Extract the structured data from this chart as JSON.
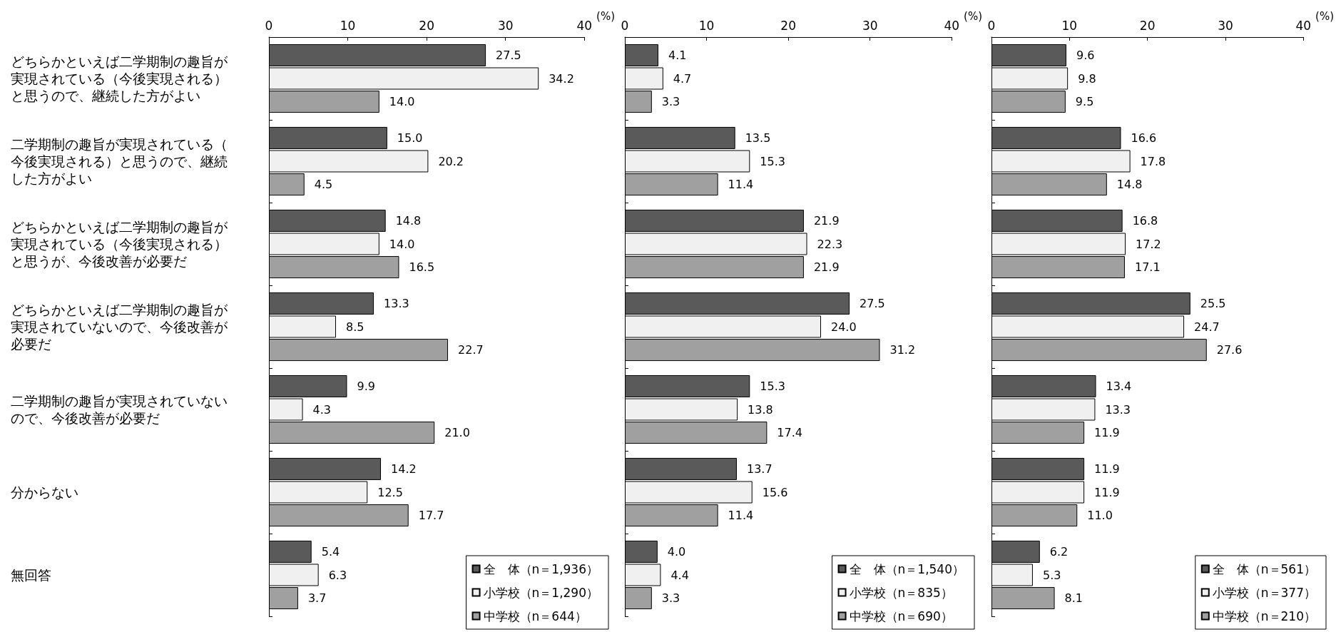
{
  "chart_data": [
    {
      "type": "bar",
      "orientation": "horizontal",
      "xlabel": "(%)",
      "categories": [
        "どちらかといえば二学期制の趣旨が実現されている（今後実現される）と思うので、継続した方がよい",
        "二学期制の趣旨が実現されている（今後実現される）と思うので、継続した方がよい",
        "どちらかといえば二学期制の趣旨が実現されている（今後実現される）と思うが、今後改善が必要だ",
        "どちらかといえば二学期制の趣旨が実現されていないので、今後改善が必要だ",
        "二学期制の趣旨が実現されていないので、今後改善が必要だ",
        "分からない",
        "無回答"
      ],
      "series": [
        {
          "name": "全　体（n＝1,936）",
          "color": "#5a5a5a",
          "values": [
            27.5,
            15.0,
            14.8,
            13.3,
            9.9,
            14.2,
            5.4
          ],
          "value_labels": [
            "27.5",
            "15.0",
            "14.8",
            "13.3",
            "9.9",
            "14.2",
            "5.4"
          ]
        },
        {
          "name": "小学校（n＝1,290）",
          "color": "#f0f0f0",
          "values": [
            34.2,
            20.2,
            14.0,
            8.5,
            4.3,
            12.5,
            6.3
          ],
          "value_labels": [
            "34.2",
            "20.2",
            "14.0",
            "8.5",
            "4.3",
            "12.5",
            "6.3"
          ]
        },
        {
          "name": "中学校（n＝644）",
          "color": "#a0a0a0",
          "values": [
            14.0,
            4.5,
            16.5,
            22.7,
            21.0,
            17.7,
            3.7
          ],
          "value_labels": [
            "14.0",
            "4.5",
            "16.5",
            "22.7",
            "21.0",
            "17.7",
            "3.7"
          ]
        }
      ],
      "xlim": [
        0,
        40
      ],
      "xticks": [
        0,
        10,
        20,
        30,
        40
      ],
      "grid": false,
      "legend": "bottom right"
    },
    {
      "type": "bar",
      "orientation": "horizontal",
      "xlabel": "(%)",
      "categories": [
        "どちらかといえば二学期制の趣旨が実現されている（今後実現される）と思うので、継続した方がよい",
        "二学期制の趣旨が実現されている（今後実現される）と思うので、継続した方がよい",
        "どちらかといえば二学期制の趣旨が実現されている（今後実現される）と思うが、今後改善が必要だ",
        "どちらかといえば二学期制の趣旨が実現されていないので、今後改善が必要だ",
        "二学期制の趣旨が実現されていないので、今後改善が必要だ",
        "分からない",
        "無回答"
      ],
      "series": [
        {
          "name": "全　体（n＝1,540）",
          "color": "#5a5a5a",
          "values": [
            4.1,
            13.5,
            21.9,
            27.5,
            15.3,
            13.7,
            4.0
          ],
          "value_labels": [
            "4.1",
            "13.5",
            "21.9",
            "27.5",
            "15.3",
            "13.7",
            "4.0"
          ]
        },
        {
          "name": "小学校（n＝835）",
          "color": "#f0f0f0",
          "values": [
            4.7,
            15.3,
            22.3,
            24.0,
            13.8,
            15.6,
            4.4
          ],
          "value_labels": [
            "4.7",
            "15.3",
            "22.3",
            "24.0",
            "13.8",
            "15.6",
            "4.4"
          ]
        },
        {
          "name": "中学校（n＝690）",
          "color": "#a0a0a0",
          "values": [
            3.3,
            11.4,
            21.9,
            31.2,
            17.4,
            11.4,
            3.3
          ],
          "value_labels": [
            "3.3",
            "11.4",
            "21.9",
            "31.2",
            "17.4",
            "11.4",
            "3.3"
          ]
        }
      ],
      "xlim": [
        0,
        40
      ],
      "xticks": [
        0,
        10,
        20,
        30,
        40
      ],
      "grid": false,
      "legend": "bottom right",
      "tick_labels": "x"
    },
    {
      "type": "bar",
      "orientation": "horizontal",
      "xlabel": "(%)",
      "categories": [
        "どちらかといえば二学期制の趣旨が実現されている（今後実現される）と思うので、継続した方がよい",
        "二学期制の趣旨が実現されている（今後実現される）と思うので、継続した方がよい",
        "どちらかといえば二学期制の趣旨が実現されている（今後実現される）と思うが、今後改善が必要だ",
        "どちらかといえば二学期制の趣旨が実現されていないので、今後改善が必要だ",
        "二学期制の趣旨が実現されていないので、今後改善が必要だ",
        "分からない",
        "無回答"
      ],
      "series": [
        {
          "name": "全　体（n＝561）",
          "color": "#5a5a5a",
          "values": [
            9.6,
            16.6,
            16.8,
            25.5,
            13.4,
            11.9,
            6.2
          ],
          "value_labels": [
            "9.6",
            "16.6",
            "16.8",
            "25.5",
            "13.4",
            "11.9",
            "6.2"
          ]
        },
        {
          "name": "小学校（n＝377）",
          "color": "#f0f0f0",
          "values": [
            9.8,
            17.8,
            17.2,
            24.7,
            13.3,
            11.9,
            5.3
          ],
          "value_labels": [
            "9.8",
            "17.8",
            "17.2",
            "24.7",
            "13.3",
            "11.9",
            "5.3"
          ]
        },
        {
          "name": "中学校（n＝210）",
          "color": "#a0a0a0",
          "values": [
            9.5,
            14.8,
            17.1,
            27.6,
            11.9,
            11.0,
            8.1
          ],
          "value_labels": [
            "9.5",
            "14.8",
            "17.1",
            "27.6",
            "11.9",
            "11.0",
            "8.1"
          ]
        }
      ],
      "xlim": [
        0,
        40
      ],
      "xticks": [
        0,
        10,
        20,
        30,
        40
      ],
      "grid": false,
      "legend": "bottom right",
      "tick_labels": "x"
    }
  ]
}
